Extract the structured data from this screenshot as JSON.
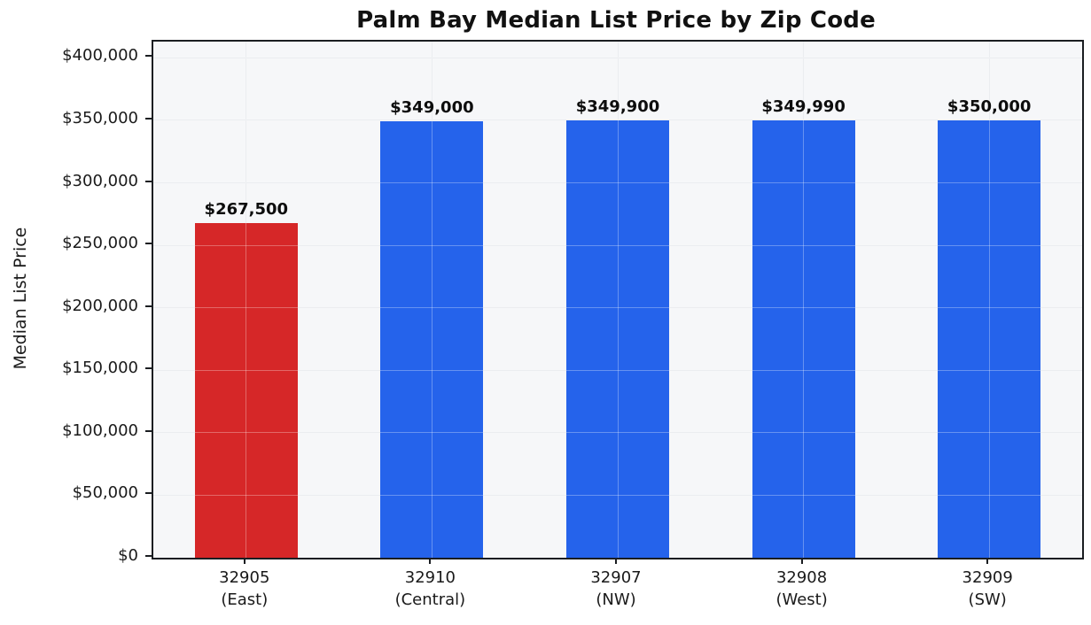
{
  "chart_data": {
    "type": "bar",
    "title": "Palm Bay Median List Price by Zip Code",
    "xlabel": "",
    "ylabel": "Median List Price",
    "categories": [
      "32905 (East)",
      "32910 (Central)",
      "32907 (NW)",
      "32908 (West)",
      "32909 (SW)"
    ],
    "category_lines": [
      [
        "32905",
        "(East)"
      ],
      [
        "32910",
        "(Central)"
      ],
      [
        "32907",
        "(NW)"
      ],
      [
        "32908",
        "(West)"
      ],
      [
        "32909",
        "(SW)"
      ]
    ],
    "values": [
      267500,
      349000,
      349900,
      349990,
      350000
    ],
    "value_labels": [
      "$267,500",
      "$349,000",
      "$349,900",
      "$349,990",
      "$350,000"
    ],
    "bar_colors": [
      "#d62728",
      "#2563eb",
      "#2563eb",
      "#2563eb",
      "#2563eb"
    ],
    "highlight_color": "#d62728",
    "default_color": "#2563eb",
    "yticks": {
      "values": [
        0,
        50000,
        100000,
        150000,
        200000,
        250000,
        300000,
        350000,
        400000
      ],
      "labels": [
        "$0",
        "$50,000",
        "$100,000",
        "$150,000",
        "$200,000",
        "$250,000",
        "$300,000",
        "$350,000",
        "$400,000"
      ]
    },
    "ylim": [
      0,
      413000
    ],
    "grid": true,
    "legend": "none",
    "plot_bg_color": "#f6f7f9",
    "grid_color": "#e2e5ea",
    "spine_color": "#1a1d21"
  }
}
